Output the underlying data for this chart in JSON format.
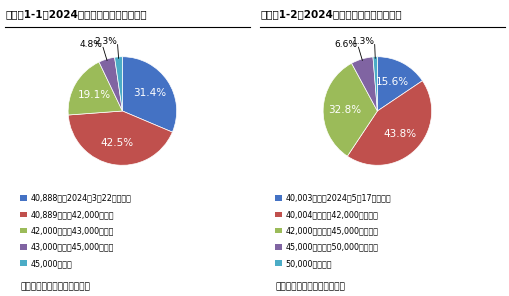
{
  "chart1": {
    "title": "グラフ1-1：2024年日経平均株価高値予想",
    "values": [
      31.4,
      42.5,
      19.1,
      4.8,
      2.3
    ],
    "colors": [
      "#4472C4",
      "#C0504D",
      "#9BBB59",
      "#8064A2",
      "#4BACC6"
    ],
    "labels": [
      "31.4%",
      "42.5%",
      "19.1%",
      "4.8%",
      "2.3%"
    ],
    "legend": [
      "40,888円（2024年3月22日終値）",
      "40,889円以上42,000円未満",
      "42,000円以上43,000円未満",
      "43,000円以上45,000円未満",
      "45,000円以上"
    ],
    "source": "（出所）マネックス証券作成",
    "startangle": 90
  },
  "chart2": {
    "title": "グラフ1-2：2024年ダウ平均株価高値予想",
    "values": [
      15.6,
      43.8,
      32.8,
      6.6,
      1.3
    ],
    "colors": [
      "#4472C4",
      "#C0504D",
      "#9BBB59",
      "#8064A2",
      "#4BACC6"
    ],
    "labels": [
      "15.6%",
      "43.8%",
      "32.8%",
      "6.6%",
      "1.3%"
    ],
    "legend": [
      "40,003ドル（2024年5月17日終値）",
      "40,004ドル以上42,000ドル未満",
      "42,000ドル以上45,000ドル未満",
      "45,000ドル以上50,000ドル未満",
      "50,000ドル以上"
    ],
    "source": "（出所）マネックス証券作成",
    "startangle": 90
  },
  "background_color": "#FFFFFF",
  "title_fontsize": 7.5,
  "legend_fontsize": 5.8,
  "source_fontsize": 6.5,
  "label_fontsize": 7.5,
  "small_label_fontsize": 6.5
}
